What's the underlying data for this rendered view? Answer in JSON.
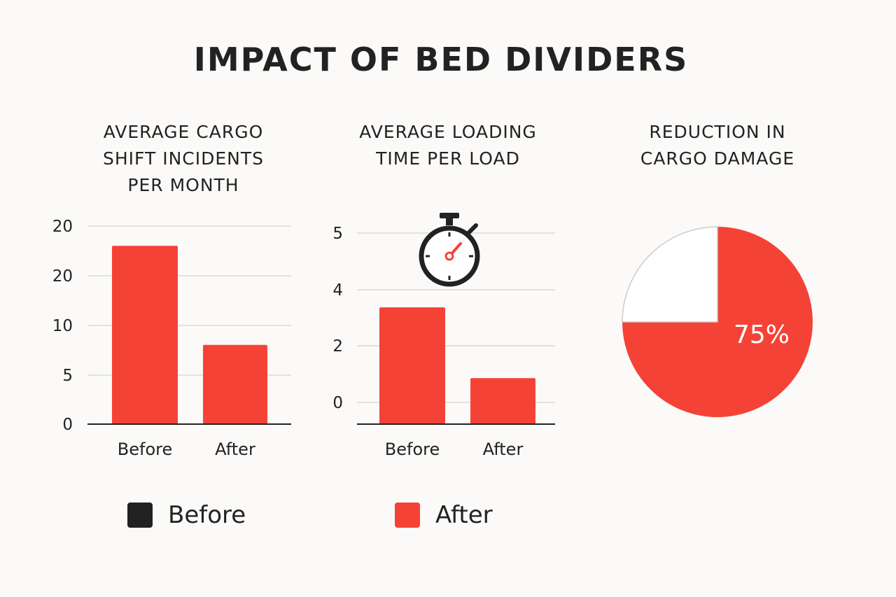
{
  "title": "IMPACT OF BED DIVIDERS",
  "colors": {
    "before": "#222222",
    "after": "#f44336",
    "grid": "#d9d9d9",
    "axis": "#222222"
  },
  "legend": [
    {
      "label": "Before",
      "color": "#222222"
    },
    {
      "label": "After",
      "color": "#f44336"
    }
  ],
  "chart_data": [
    {
      "type": "bar",
      "title_lines": [
        "AVERAGE CARGO",
        "SHIFT INCIDENTS",
        "PER MONTH"
      ],
      "categories": [
        "Before",
        "After"
      ],
      "tick_labels": [
        "0",
        "5",
        "10",
        "20",
        "20"
      ],
      "values": [
        18,
        8
      ],
      "grid": true
    },
    {
      "type": "bar",
      "title_lines": [
        "AVERAGE LOADING",
        "TIME PER LOAD"
      ],
      "categories": [
        "Before",
        "After"
      ],
      "tick_labels": [
        "0",
        "2",
        "4",
        "5"
      ],
      "values": [
        3.3,
        1.3
      ],
      "grid": true,
      "icon": "stopwatch-icon"
    },
    {
      "type": "pie",
      "title_lines": [
        "REDUCTION IN",
        "CARGO DAMAGE"
      ],
      "slices": [
        {
          "value": 75,
          "label": "75%",
          "color": "#f44336"
        },
        {
          "value": 25,
          "label": "",
          "color": "#ffffff"
        }
      ]
    }
  ]
}
